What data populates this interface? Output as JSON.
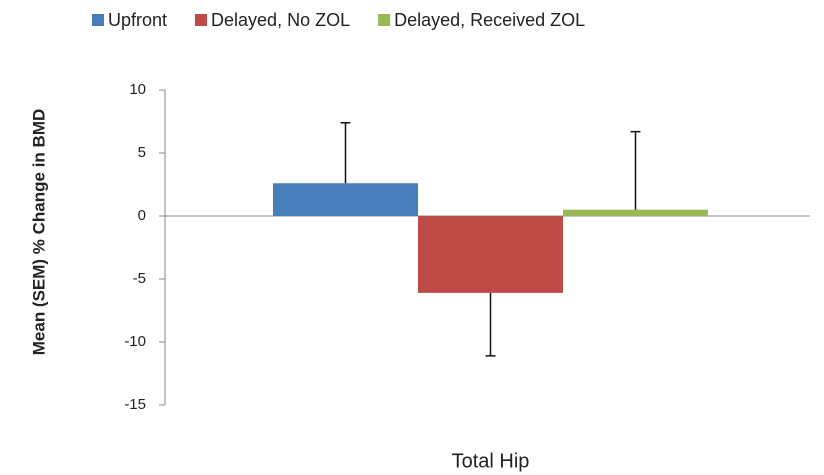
{
  "chart_data": {
    "type": "bar",
    "categories": [
      "Total Hip"
    ],
    "ylabel": "Mean (SEM) % Change in BMD",
    "series": [
      {
        "name": "Upfront",
        "color": "#4a7ebb",
        "values": [
          2.6
        ],
        "errors": [
          4.8
        ]
      },
      {
        "name": "Delayed, No ZOL",
        "color": "#be4b48",
        "values": [
          -6.1
        ],
        "errors": [
          5.0
        ]
      },
      {
        "name": "Delayed, Received ZOL",
        "color": "#98b954",
        "values": [
          0.5
        ],
        "errors": [
          6.2
        ]
      }
    ],
    "ylim": [
      -15,
      10
    ],
    "yticks": [
      -15,
      -10,
      -5,
      0,
      5,
      10
    ],
    "legend": "top"
  }
}
